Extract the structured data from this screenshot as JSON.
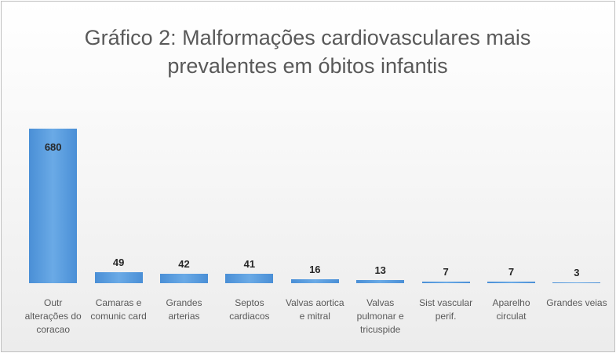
{
  "chart_data": {
    "type": "bar",
    "title": "Gráfico 2: Malformações cardiovasculares mais prevalentes em óbitos infantis",
    "categories": [
      "Outr alterações do coracao",
      "Camaras e comunic card",
      "Grandes arterias",
      "Septos cardiacos",
      "Valvas aortica e mitral",
      "Valvas pulmonar e tricuspide",
      "Sist vascular perif.",
      "Aparelho circulat",
      "Grandes veias"
    ],
    "values": [
      680,
      49,
      42,
      41,
      16,
      13,
      7,
      7,
      3
    ],
    "color": "#5b9bd5"
  }
}
